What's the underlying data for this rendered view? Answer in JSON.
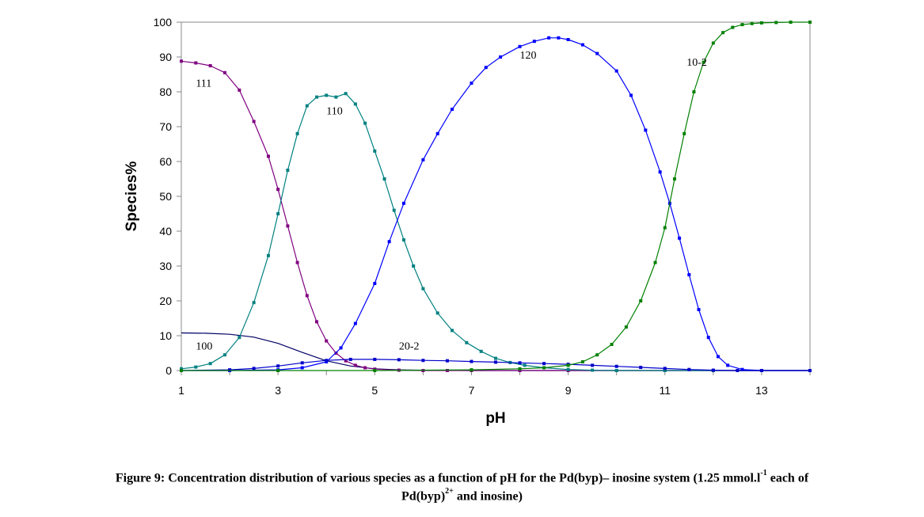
{
  "chart_data": {
    "type": "line",
    "xlabel": "pH",
    "ylabel": "Species%",
    "xlim": [
      1,
      14
    ],
    "ylim": [
      0,
      100
    ],
    "xticks": [
      "1",
      "3",
      "5",
      "7",
      "9",
      "11",
      "13"
    ],
    "yticks": [
      "0",
      "10",
      "20",
      "30",
      "40",
      "50",
      "60",
      "70",
      "80",
      "90",
      "100"
    ],
    "grid": false,
    "legend": "none",
    "series": [
      {
        "name": "100",
        "color": "#000066",
        "markers": false,
        "x": [
          1.0,
          1.5,
          2.0,
          2.5,
          3.0,
          3.5,
          4.0,
          4.5,
          5.0,
          5.5,
          6.0,
          6.5,
          7.0,
          8.0,
          9.0,
          10.0,
          11.0,
          12.0,
          13.0,
          14.0
        ],
        "y": [
          10.8,
          10.7,
          10.4,
          9.6,
          7.8,
          5.2,
          2.8,
          1.3,
          0.5,
          0.2,
          0.1,
          0.05,
          0,
          0,
          0,
          0,
          0,
          0,
          0,
          0
        ]
      },
      {
        "name": "111",
        "color": "#800080",
        "markers": true,
        "x": [
          1.0,
          1.3,
          1.6,
          1.9,
          2.2,
          2.5,
          2.8,
          3.0,
          3.2,
          3.4,
          3.6,
          3.8,
          4.0,
          4.2,
          4.4,
          4.6,
          4.8,
          5.0,
          5.5,
          6.0,
          6.5,
          7.0,
          8.0,
          9.0,
          10.0,
          11.0,
          12.0,
          13.0,
          14.0
        ],
        "y": [
          88.8,
          88.3,
          87.5,
          85.5,
          80.5,
          71.5,
          61.5,
          52.0,
          41.5,
          31.0,
          21.5,
          14.0,
          8.5,
          5.0,
          2.8,
          1.5,
          0.8,
          0.4,
          0.1,
          0,
          0,
          0,
          0,
          0,
          0,
          0,
          0,
          0,
          0
        ]
      },
      {
        "name": "110",
        "color": "#008080",
        "markers": true,
        "x": [
          1.0,
          1.3,
          1.6,
          1.9,
          2.2,
          2.5,
          2.8,
          3.0,
          3.2,
          3.4,
          3.6,
          3.8,
          4.0,
          4.2,
          4.4,
          4.6,
          4.8,
          5.0,
          5.2,
          5.4,
          5.6,
          5.8,
          6.0,
          6.3,
          6.6,
          6.9,
          7.2,
          7.5,
          7.8,
          8.1,
          8.5,
          9.0,
          9.5,
          10.0,
          11.0,
          12.0,
          14.0
        ],
        "y": [
          0.5,
          1.0,
          2.0,
          4.5,
          9.5,
          19.5,
          33.0,
          45.0,
          57.5,
          68.0,
          76.0,
          78.5,
          79.0,
          78.5,
          79.5,
          76.5,
          71.0,
          63.0,
          55.0,
          46.0,
          37.5,
          30.0,
          23.5,
          16.5,
          11.5,
          8.0,
          5.5,
          3.5,
          2.3,
          1.5,
          0.8,
          0.3,
          0.1,
          0,
          0,
          0,
          0
        ]
      },
      {
        "name": "120",
        "color": "#0000FF",
        "markers": true,
        "x": [
          1.0,
          2.0,
          3.0,
          3.5,
          4.0,
          4.3,
          4.6,
          5.0,
          5.3,
          5.6,
          6.0,
          6.3,
          6.6,
          7.0,
          7.3,
          7.6,
          8.0,
          8.3,
          8.6,
          8.8,
          9.0,
          9.3,
          9.6,
          10.0,
          10.3,
          10.6,
          10.9,
          11.1,
          11.3,
          11.5,
          11.7,
          11.9,
          12.1,
          12.3,
          12.6,
          13.0,
          14.0
        ],
        "y": [
          0,
          0,
          0.2,
          0.8,
          2.5,
          6.5,
          13.5,
          25.0,
          37.0,
          48.0,
          60.5,
          68.0,
          75.0,
          82.5,
          87.0,
          90.0,
          93.0,
          94.5,
          95.5,
          95.5,
          95.0,
          93.5,
          91.0,
          86.0,
          79.0,
          69.0,
          57.0,
          48.0,
          38.0,
          27.5,
          17.5,
          9.5,
          4.0,
          1.5,
          0.3,
          0,
          0
        ]
      },
      {
        "name": "20-2",
        "color": "#0000CC",
        "markers": true,
        "x": [
          1.0,
          2.0,
          2.5,
          3.0,
          3.5,
          4.0,
          4.5,
          5.0,
          5.5,
          6.0,
          6.5,
          7.0,
          7.5,
          8.0,
          8.5,
          9.0,
          9.5,
          10.0,
          10.5,
          11.0,
          11.5,
          12.0,
          12.5,
          13.0,
          14.0
        ],
        "y": [
          0,
          0.2,
          0.6,
          1.3,
          2.2,
          2.9,
          3.2,
          3.2,
          3.1,
          2.9,
          2.8,
          2.6,
          2.4,
          2.2,
          2.0,
          1.8,
          1.5,
          1.2,
          0.9,
          0.6,
          0.3,
          0.1,
          0,
          0,
          0
        ]
      },
      {
        "name": "10-2",
        "color": "#008000",
        "markers": true,
        "x": [
          1.0,
          3.0,
          5.0,
          7.0,
          8.0,
          8.5,
          9.0,
          9.3,
          9.6,
          9.9,
          10.2,
          10.5,
          10.8,
          11.0,
          11.2,
          11.4,
          11.6,
          11.8,
          12.0,
          12.2,
          12.4,
          12.6,
          12.8,
          13.0,
          13.3,
          13.6,
          14.0
        ],
        "y": [
          0,
          0,
          0,
          0.2,
          0.5,
          0.8,
          1.5,
          2.5,
          4.5,
          7.5,
          12.5,
          20.0,
          31.0,
          41.0,
          55.0,
          68.0,
          80.0,
          88.5,
          94.0,
          97.0,
          98.5,
          99.3,
          99.6,
          99.8,
          99.9,
          100.0,
          100.0
        ]
      }
    ],
    "series_labels": [
      {
        "text": "111",
        "x": 1.3,
        "y": 81.5
      },
      {
        "text": "110",
        "x": 4.0,
        "y": 73.5
      },
      {
        "text": "120",
        "x": 8.0,
        "y": 89.5
      },
      {
        "text": "10-2",
        "x": 11.45,
        "y": 87.5
      },
      {
        "text": "100",
        "x": 1.3,
        "y": 6.0
      },
      {
        "text": "20-2",
        "x": 5.5,
        "y": 6.0
      }
    ]
  },
  "caption": {
    "line1": "Figure 9: Concentration distribution of various species as a function of pH for the Pd(byp)– inosine system (1.25 mmol.l",
    "line1_sup": "-1",
    "line1_end": " each of",
    "line2": "Pd(byp)",
    "line2_sup": "2+",
    "line2_end": " and inosine)"
  }
}
